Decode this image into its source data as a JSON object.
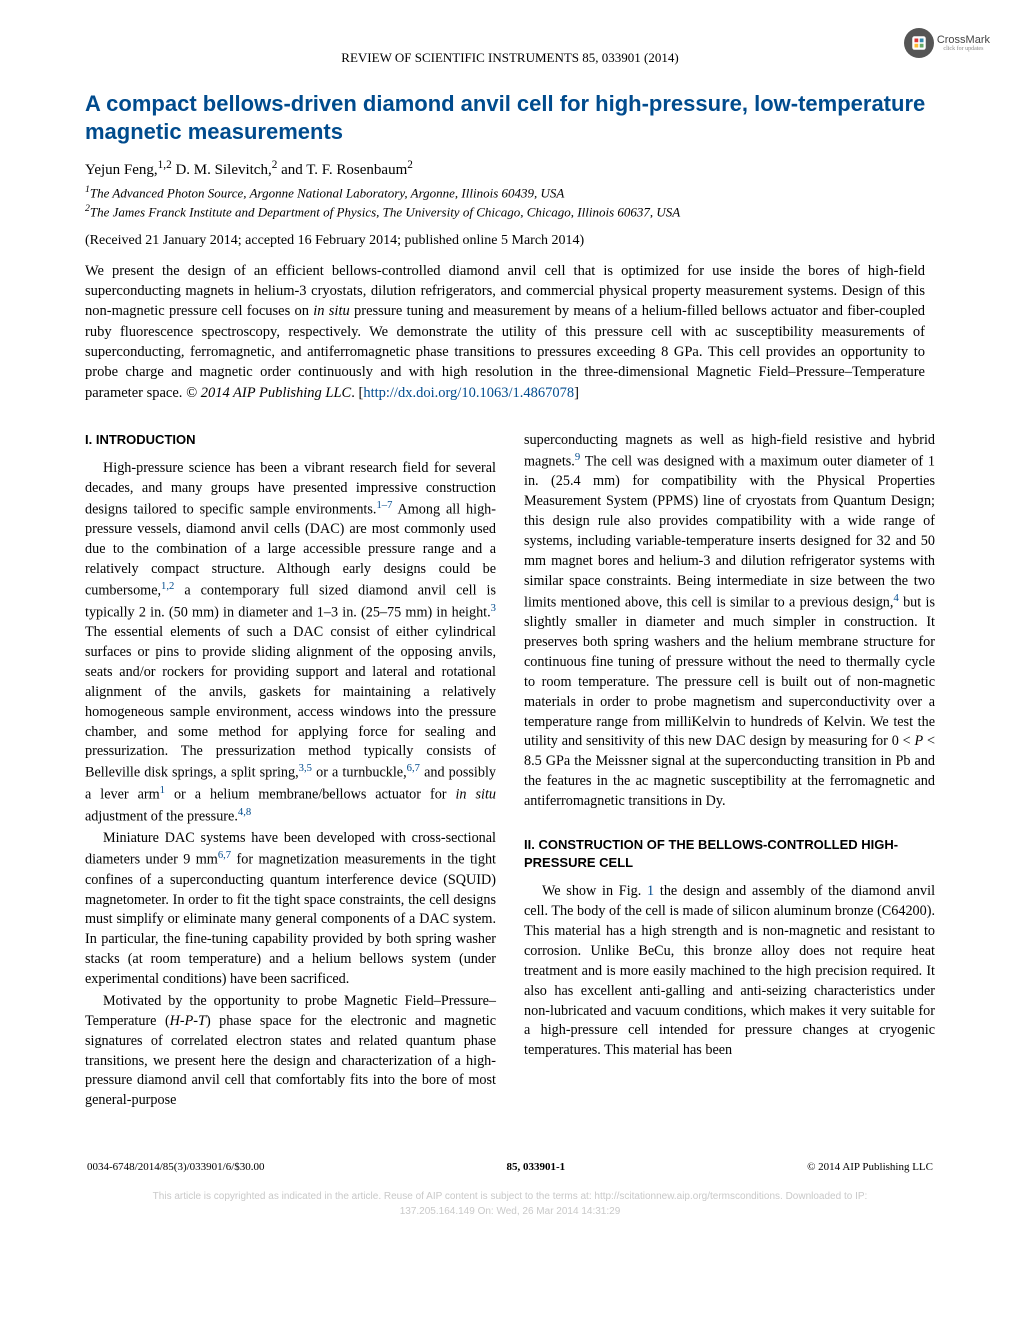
{
  "header": {
    "journal_line": "REVIEW OF SCIENTIFIC INSTRUMENTS 85, 033901 (2014)",
    "crossmark": {
      "label": "CrossMark",
      "sub": "click for updates"
    }
  },
  "title": "A compact bellows-driven diamond anvil cell for high-pressure, low-temperature magnetic measurements",
  "authors_html": "Yejun Feng,<sup>1,2</sup> D. M. Silevitch,<sup>2</sup> and T. F. Rosenbaum<sup>2</sup>",
  "affiliations": [
    "<sup>1</sup>The Advanced Photon Source, Argonne National Laboratory, Argonne, Illinois 60439, USA",
    "<sup>2</sup>The James Franck Institute and Department of Physics, The University of Chicago, Chicago, Illinois 60637, USA"
  ],
  "dates": "(Received 21 January 2014; accepted 16 February 2014; published online 5 March 2014)",
  "abstract_html": "We present the design of an efficient bellows-controlled diamond anvil cell that is optimized for use inside the bores of high-field superconducting magnets in helium-3 cryostats, dilution refrigerators, and commercial physical property measurement systems. Design of this non-magnetic pressure cell focuses on <i>in situ</i> pressure tuning and measurement by means of a helium-filled bellows actuator and fiber-coupled ruby fluorescence spectroscopy, respectively. We demonstrate the utility of this pressure cell with ac susceptibility measurements of superconducting, ferromagnetic, and antiferromagnetic phase transitions to pressures exceeding 8 GPa. This cell provides an opportunity to probe charge and magnetic order continuously and with high resolution in the three-dimensional Magnetic Field–Pressure–Temperature parameter space. <i>© 2014 AIP Publishing LLC</i>. [<a class=\"doi-link\" data-name=\"doi-link\" data-interactable=\"true\">http://dx.doi.org/10.1063/1.4867078</a>]",
  "sections": {
    "intro_heading": "I. INTRODUCTION",
    "intro_paras": [
      "High-pressure science has been a vibrant research field for several decades, and many groups have presented impressive construction designs tailored to specific sample environments.<sup class=\"ref\">1–7</sup> Among all high-pressure vessels, diamond anvil cells (DAC) are most commonly used due to the combination of a large accessible pressure range and a relatively compact structure. Although early designs could be cumbersome,<sup class=\"ref\">1,2</sup> a contemporary full sized diamond anvil cell is typically 2 in. (50 mm) in diameter and 1–3 in. (25–75 mm) in height.<sup class=\"ref\">3</sup> The essential elements of such a DAC consist of either cylindrical surfaces or pins to provide sliding alignment of the opposing anvils, seats and/or rockers for providing support and lateral and rotational alignment of the anvils, gaskets for maintaining a relatively homogeneous sample environment, access windows into the pressure chamber, and some method for applying force for sealing and pressurization. The pressurization method typically consists of Belleville disk springs, a split spring,<sup class=\"ref\">3,5</sup> or a turnbuckle,<sup class=\"ref\">6,7</sup> and possibly a lever arm<sup class=\"ref\">1</sup> or a helium membrane/bellows actuator for <i>in situ</i> adjustment of the pressure.<sup class=\"ref\">4,8</sup>",
      "Miniature DAC systems have been developed with cross-sectional diameters under 9 mm<sup class=\"ref\">6,7</sup> for magnetization measurements in the tight confines of a superconducting quantum interference device (SQUID) magnetometer. In order to fit the tight space constraints, the cell designs must simplify or eliminate many general components of a DAC system. In particular, the fine-tuning capability provided by both spring washer stacks (at room temperature) and a helium bellows system (under experimental conditions) have been sacrificed.",
      "Motivated by the opportunity to probe Magnetic Field–Pressure–Temperature (<i>H-P-T</i>) phase space for the electronic and magnetic signatures of correlated electron states and related quantum phase transitions, we present here the design and characterization of a high-pressure diamond anvil cell that comfortably fits into the bore of most general-purpose"
    ],
    "col2_top_para": "superconducting magnets as well as high-field resistive and hybrid magnets.<sup class=\"ref\">9</sup> The cell was designed with a maximum outer diameter of 1 in. (25.4 mm) for compatibility with the Physical Properties Measurement System (PPMS) line of cryostats from Quantum Design; this design rule also provides compatibility with a wide range of systems, including variable-temperature inserts designed for 32 and 50 mm magnet bores and helium-3 and dilution refrigerator systems with similar space constraints. Being intermediate in size between the two limits mentioned above, this cell is similar to a previous design,<sup class=\"ref\">4</sup> but is slightly smaller in diameter and much simpler in construction. It preserves both spring washers and the helium membrane structure for continuous fine tuning of pressure without the need to thermally cycle to room temperature. The pressure cell is built out of non-magnetic materials in order to probe magnetism and superconductivity over a temperature range from milliKelvin to hundreds of Kelvin. We test the utility and sensitivity of this new DAC design by measuring for 0 &lt; <i>P</i> &lt; 8.5 GPa the Meissner signal at the superconducting transition in Pb and the features in the ac magnetic susceptibility at the ferromagnetic and antiferromagnetic transitions in Dy.",
    "construction_heading": "II. CONSTRUCTION OF THE BELLOWS-CONTROLLED HIGH-PRESSURE CELL",
    "construction_para": "We show in Fig. <span class=\"fig-ref\">1</span> the design and assembly of the diamond anvil cell. The body of the cell is made of silicon aluminum bronze (C64200). This material has a high strength and is non-magnetic and resistant to corrosion. Unlike BeCu, this bronze alloy does not require heat treatment and is more easily machined to the high precision required. It also has excellent anti-galling and anti-seizing characteristics under non-lubricated and vacuum conditions, which makes it very suitable for a high-pressure cell intended for pressure changes at cryogenic temperatures. This material has been"
  },
  "footer": {
    "left": "0034-6748/2014/85(3)/033901/6/$30.00",
    "center": "85, 033901-1",
    "right": "© 2014 AIP Publishing LLC"
  },
  "watermark": {
    "line1": "This article is copyrighted as indicated in the article. Reuse of AIP content is subject to the terms at: http://scitationnew.aip.org/termsconditions. Downloaded to IP:",
    "line2": "137.205.164.149 On: Wed, 26 Mar 2014 14:31:29"
  },
  "colors": {
    "link": "#004b8d",
    "text": "#000000",
    "watermark": "#c9c9c9"
  }
}
